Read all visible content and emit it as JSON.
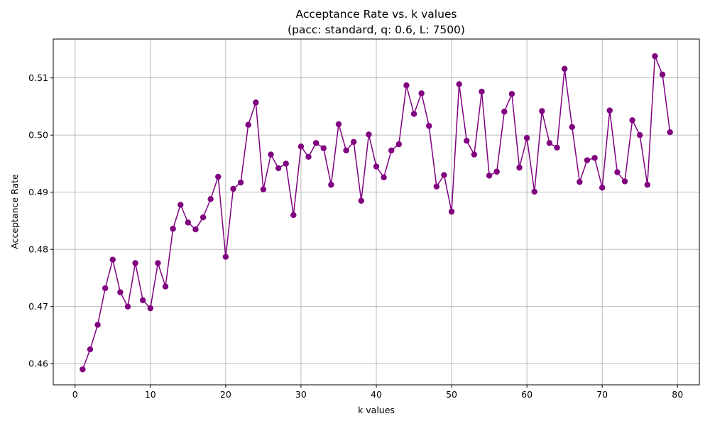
{
  "chart_data": {
    "type": "line",
    "title": "Acceptance Rate vs. k values",
    "subtitle": "(pacc: standard, q: 0.6, L: 7500)",
    "xlabel": "k values",
    "ylabel": "Acceptance Rate",
    "xlim": [
      -2.9,
      82.9
    ],
    "ylim": [
      0.4563,
      0.5168
    ],
    "xticks": [
      0,
      10,
      20,
      30,
      40,
      50,
      60,
      70,
      80
    ],
    "yticks": [
      0.46,
      0.47,
      0.48,
      0.49,
      0.5,
      0.51
    ],
    "ytick_labels": [
      "0.46",
      "0.47",
      "0.48",
      "0.49",
      "0.50",
      "0.51"
    ],
    "grid": true,
    "line_color": "#800080",
    "marker": "circle",
    "series": [
      {
        "x": [
          1,
          2,
          3,
          4,
          5,
          6,
          7,
          8,
          9,
          10,
          11,
          12,
          13,
          14,
          15,
          16,
          17,
          18,
          19,
          20,
          21,
          22,
          23,
          24,
          25,
          26,
          27,
          28,
          29,
          30,
          31,
          32,
          33,
          34,
          35,
          36,
          37,
          38,
          39,
          40,
          41,
          42,
          43,
          44,
          45,
          46,
          47,
          48,
          49,
          50,
          51,
          52,
          53,
          54,
          55,
          56,
          57,
          58,
          59,
          60,
          61,
          62,
          63,
          64,
          65,
          66,
          67,
          68,
          69,
          70,
          71,
          72,
          73,
          74,
          75,
          76,
          77,
          78,
          79
        ],
        "values": [
          0.459,
          0.4625,
          0.4668,
          0.4732,
          0.4782,
          0.4725,
          0.47,
          0.4776,
          0.4711,
          0.4697,
          0.4776,
          0.4735,
          0.4836,
          0.4878,
          0.4847,
          0.4835,
          0.4856,
          0.4888,
          0.4927,
          0.4787,
          0.4906,
          0.4917,
          0.5018,
          0.5057,
          0.4905,
          0.4966,
          0.4942,
          0.495,
          0.486,
          0.498,
          0.4962,
          0.4986,
          0.4977,
          0.4913,
          0.5019,
          0.4973,
          0.4988,
          0.4885,
          0.5001,
          0.4945,
          0.4926,
          0.4973,
          0.4984,
          0.5087,
          0.5037,
          0.5073,
          0.5016,
          0.491,
          0.493,
          0.4866,
          0.5089,
          0.499,
          0.4966,
          0.5076,
          0.4929,
          0.4936,
          0.5041,
          0.5072,
          0.4943,
          0.4995,
          0.4901,
          0.5042,
          0.4986,
          0.4978,
          0.5116,
          0.5014,
          0.4918,
          0.4956,
          0.496,
          0.4908,
          0.5043,
          0.4935,
          0.4919,
          0.5026,
          0.5,
          0.4913,
          0.5138,
          0.5106,
          0.5005
        ]
      }
    ]
  }
}
